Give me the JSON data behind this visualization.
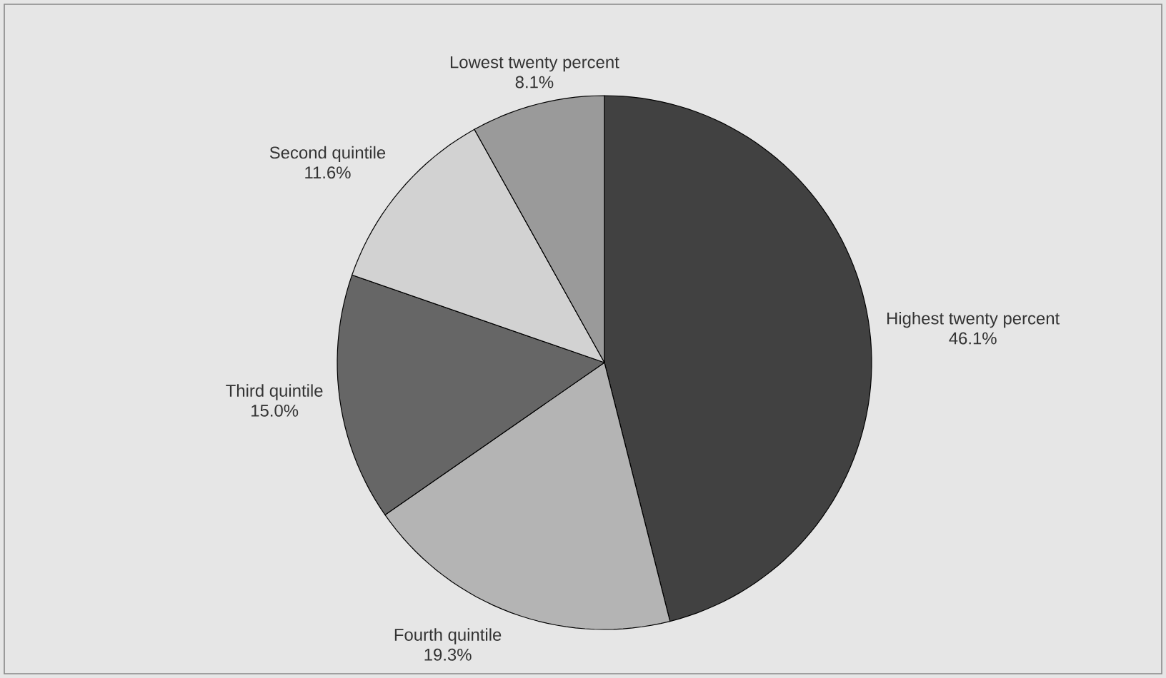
{
  "chart_data": {
    "type": "pie",
    "categories": [
      "Highest twenty percent",
      "Fourth quintile",
      "Third quintile",
      "Second quintile",
      "Lowest twenty percent"
    ],
    "values": [
      46.1,
      19.3,
      15.0,
      11.6,
      8.1
    ],
    "value_labels": [
      "46.1%",
      "19.3%",
      "15.0%",
      "11.6%",
      "8.1%"
    ],
    "colors": [
      "#414141",
      "#b4b4b4",
      "#666666",
      "#d2d2d2",
      "#9a9a9a"
    ]
  }
}
